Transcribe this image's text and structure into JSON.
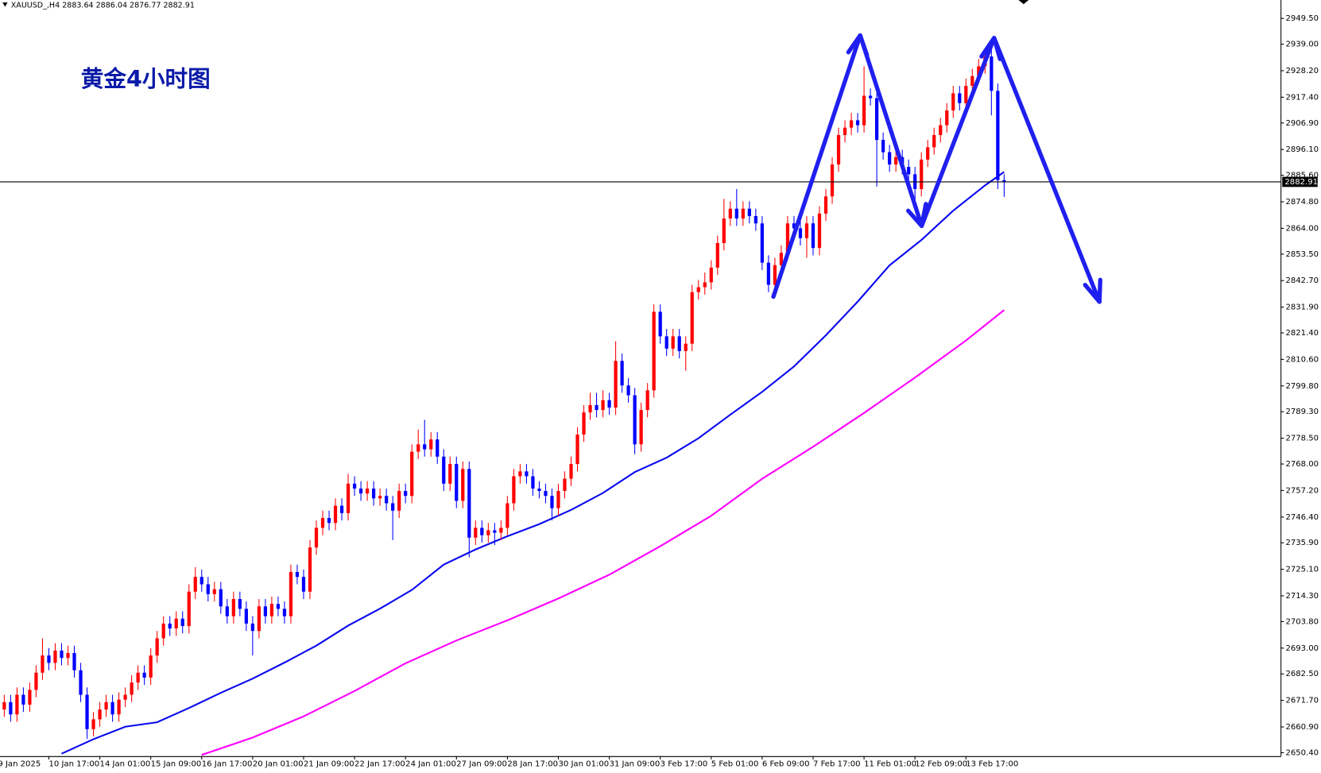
{
  "chart_data": {
    "type": "candlestick",
    "symbol": "XAUUSD_,H4",
    "annotation": "黄金4小时图",
    "up_color": "#ff0000",
    "down_color": "#0000ff",
    "price_line": true,
    "open": [
      2665,
      2668,
      2671,
      2666,
      2674,
      2670,
      2676,
      2683,
      2690,
      2687,
      2692,
      2689,
      2691,
      2684,
      2674,
      2660,
      2664,
      2668,
      2671,
      2666,
      2672,
      2674,
      2679,
      2683,
      2681,
      2690,
      2697,
      2703,
      2701,
      2705,
      2702,
      2716,
      2722,
      2719,
      2715,
      2717,
      2710,
      2706,
      2713,
      2709,
      2703,
      2700,
      2710,
      2706,
      2711,
      2709,
      2706,
      2724,
      2722,
      2716,
      2734,
      2742,
      2746,
      2744,
      2751,
      2748,
      2760,
      2758,
      2756,
      2758,
      2754,
      2755,
      2752,
      2749,
      2757,
      2755,
      2773,
      2776,
      2774,
      2778,
      2771,
      2760,
      2768,
      2753,
      2766,
      2738,
      2742,
      2739,
      2741,
      2740,
      2742,
      2752,
      2763,
      2765,
      2763,
      2758,
      2757,
      2755,
      2750,
      2757,
      2762,
      2768,
      2780,
      2789,
      2792,
      2790,
      2794,
      2791,
      2810,
      2800,
      2796,
      2776,
      2790,
      2798,
      2830,
      2820,
      2815,
      2820,
      2814,
      2817,
      2838,
      2840,
      2842,
      2848,
      2858,
      2868,
      2872,
      2868,
      2872,
      2869,
      2866,
      2850,
      2841,
      2849,
      2854,
      2866,
      2864,
      2860,
      2866,
      2856,
      2870,
      2877,
      2890,
      2902,
      2905,
      2908,
      2906,
      2918,
      2917,
      2900,
      2895,
      2890,
      2893,
      2889,
      2886,
      2880,
      2892,
      2897,
      2902,
      2906,
      2912,
      2919,
      2915,
      2922,
      2926,
      2930,
      2934,
      2920,
      2883.64
    ],
    "high": [
      2671,
      2674,
      2674,
      2677,
      2677,
      2679,
      2686,
      2697,
      2693,
      2695,
      2695,
      2694,
      2694,
      2687,
      2677,
      2667,
      2671,
      2674,
      2674,
      2675,
      2677,
      2682,
      2686,
      2686,
      2693,
      2700,
      2706,
      2706,
      2708,
      2708,
      2719,
      2726,
      2725,
      2722,
      2720,
      2720,
      2713,
      2716,
      2716,
      2712,
      2706,
      2713,
      2713,
      2714,
      2714,
      2712,
      2727,
      2727,
      2725,
      2737,
      2745,
      2749,
      2749,
      2754,
      2754,
      2764,
      2763,
      2761,
      2761,
      2761,
      2758,
      2758,
      2755,
      2760,
      2760,
      2776,
      2782,
      2786,
      2781,
      2781,
      2774,
      2771,
      2771,
      2769,
      2769,
      2745,
      2745,
      2744,
      2744,
      2745,
      2755,
      2766,
      2768,
      2768,
      2766,
      2761,
      2760,
      2758,
      2760,
      2765,
      2771,
      2783,
      2792,
      2797,
      2797,
      2798,
      2797,
      2818,
      2813,
      2803,
      2799,
      2793,
      2801,
      2833,
      2833,
      2823,
      2823,
      2823,
      2820,
      2841,
      2843,
      2846,
      2851,
      2861,
      2876,
      2875,
      2880,
      2875,
      2875,
      2872,
      2869,
      2853,
      2852,
      2857,
      2869,
      2869,
      2867,
      2869,
      2869,
      2873,
      2880,
      2893,
      2905,
      2908,
      2911,
      2911,
      2930,
      2921,
      2920,
      2903,
      2898,
      2896,
      2896,
      2892,
      2889,
      2895,
      2900,
      2905,
      2909,
      2915,
      2922,
      2922,
      2925,
      2929,
      2933,
      2937,
      2937,
      2923,
      2886.04
    ],
    "low": [
      2662,
      2665,
      2663,
      2663,
      2667,
      2667,
      2673,
      2680,
      2684,
      2684,
      2686,
      2686,
      2681,
      2671,
      2656,
      2657,
      2661,
      2665,
      2663,
      2663,
      2669,
      2671,
      2676,
      2678,
      2678,
      2687,
      2694,
      2698,
      2698,
      2699,
      2699,
      2713,
      2716,
      2712,
      2712,
      2707,
      2703,
      2703,
      2706,
      2700,
      2690,
      2697,
      2703,
      2703,
      2706,
      2703,
      2703,
      2719,
      2713,
      2713,
      2731,
      2739,
      2741,
      2741,
      2745,
      2745,
      2755,
      2753,
      2753,
      2751,
      2751,
      2749,
      2737,
      2746,
      2752,
      2752,
      2770,
      2771,
      2771,
      2768,
      2757,
      2757,
      2750,
      2750,
      2730,
      2735,
      2736,
      2736,
      2735,
      2737,
      2739,
      2749,
      2760,
      2760,
      2755,
      2754,
      2752,
      2745,
      2747,
      2754,
      2759,
      2765,
      2777,
      2786,
      2787,
      2787,
      2788,
      2788,
      2797,
      2793,
      2772,
      2773,
      2787,
      2795,
      2817,
      2812,
      2812,
      2811,
      2806,
      2814,
      2835,
      2837,
      2839,
      2845,
      2855,
      2865,
      2865,
      2865,
      2866,
      2863,
      2847,
      2838,
      2838,
      2846,
      2851,
      2861,
      2857,
      2852,
      2853,
      2853,
      2867,
      2874,
      2887,
      2899,
      2902,
      2903,
      2903,
      2914,
      2881,
      2892,
      2887,
      2887,
      2886,
      2883,
      2872,
      2877,
      2889,
      2894,
      2899,
      2903,
      2909,
      2912,
      2912,
      2919,
      2923,
      2927,
      2910,
      2880,
      2876.77
    ],
    "close": [
      2668,
      2671,
      2666,
      2674,
      2670,
      2676,
      2683,
      2690,
      2687,
      2692,
      2689,
      2691,
      2684,
      2674,
      2660,
      2664,
      2668,
      2671,
      2666,
      2672,
      2674,
      2679,
      2683,
      2681,
      2690,
      2697,
      2703,
      2701,
      2705,
      2702,
      2716,
      2722,
      2719,
      2715,
      2717,
      2710,
      2706,
      2713,
      2709,
      2703,
      2700,
      2710,
      2706,
      2711,
      2709,
      2706,
      2724,
      2722,
      2716,
      2734,
      2742,
      2746,
      2744,
      2751,
      2748,
      2760,
      2758,
      2756,
      2758,
      2754,
      2755,
      2752,
      2749,
      2757,
      2755,
      2773,
      2776,
      2774,
      2778,
      2771,
      2760,
      2768,
      2753,
      2766,
      2738,
      2742,
      2739,
      2741,
      2740,
      2742,
      2752,
      2763,
      2765,
      2763,
      2758,
      2757,
      2755,
      2750,
      2757,
      2762,
      2768,
      2780,
      2789,
      2792,
      2790,
      2794,
      2791,
      2810,
      2800,
      2796,
      2776,
      2790,
      2798,
      2830,
      2820,
      2815,
      2820,
      2814,
      2817,
      2838,
      2840,
      2842,
      2848,
      2858,
      2868,
      2872,
      2868,
      2872,
      2869,
      2866,
      2850,
      2841,
      2849,
      2854,
      2866,
      2864,
      2860,
      2866,
      2856,
      2870,
      2877,
      2890,
      2902,
      2905,
      2908,
      2906,
      2918,
      2917,
      2900,
      2895,
      2890,
      2893,
      2889,
      2886,
      2880,
      2892,
      2897,
      2902,
      2906,
      2912,
      2919,
      2915,
      2922,
      2926,
      2930,
      2934,
      2920,
      2883.64,
      2882.91
    ],
    "lines": [
      {
        "color": "#0a0af0",
        "x": [
          10,
          15,
          20,
          25,
          30,
          35,
          40,
          45,
          50,
          55,
          60,
          65,
          70,
          75,
          80,
          85,
          90,
          95,
          100,
          105,
          110,
          115,
          120,
          125,
          130,
          135,
          140,
          145,
          150,
          155,
          158
        ],
        "values": [
          2650.0,
          2655.9,
          2661.0,
          2662.8,
          2668.6,
          2674.8,
          2680.6,
          2687.1,
          2694.0,
          2702.2,
          2709.1,
          2716.7,
          2727.0,
          2733.2,
          2738.6,
          2743.5,
          2749.3,
          2756.2,
          2764.7,
          2770.6,
          2778.5,
          2788.1,
          2797.4,
          2807.7,
          2820.4,
          2834.1,
          2848.9,
          2859.2,
          2871.2,
          2881.5,
          2887.0
        ]
      },
      {
        "color": "#ff00ff",
        "x": [
          32,
          40,
          48,
          56,
          64,
          72,
          80,
          88,
          96,
          104,
          112,
          120,
          128,
          136,
          144,
          152,
          158
        ],
        "values": [
          2649.5,
          2656.6,
          2665.2,
          2675.5,
          2686.8,
          2696.1,
          2704.3,
          2713.2,
          2722.9,
          2734.5,
          2746.9,
          2762.0,
          2775.0,
          2788.8,
          2803.2,
          2818.3,
          2830.7
        ]
      }
    ],
    "xlim": [
      0.33,
      201.4
    ],
    "xticks": [
      {
        "value": 0,
        "label": "9 Jan 2025"
      },
      {
        "value": 8,
        "label": "10 Jan 17:00"
      },
      {
        "value": 16,
        "label": "14 Jan 01:00"
      },
      {
        "value": 24,
        "label": "15 Jan 09:00"
      },
      {
        "value": 32,
        "label": "16 Jan 17:00"
      },
      {
        "value": 40,
        "label": "20 Jan 01:00"
      },
      {
        "value": 48,
        "label": "21 Jan 09:00"
      },
      {
        "value": 56,
        "label": "22 Jan 17:00"
      },
      {
        "value": 64,
        "label": "24 Jan 01:00"
      },
      {
        "value": 72,
        "label": "27 Jan 09:00"
      },
      {
        "value": 80,
        "label": "28 Jan 17:00"
      },
      {
        "value": 88,
        "label": "30 Jan 01:00"
      },
      {
        "value": 96,
        "label": "31 Jan 09:00"
      },
      {
        "value": 104,
        "label": "3 Feb 17:00"
      },
      {
        "value": 112,
        "label": "5 Feb 01:00"
      },
      {
        "value": 120,
        "label": "6 Feb 09:00"
      },
      {
        "value": 128,
        "label": "7 Feb 17:00"
      },
      {
        "value": 136,
        "label": "11 Feb 01:00"
      },
      {
        "value": 144,
        "label": "12 Feb 09:00"
      },
      {
        "value": 152,
        "label": "13 Feb 17:00"
      }
    ],
    "ylim": [
      2649,
      2957
    ],
    "yticks": [
      {
        "value": 2949.5,
        "label": "2949.50"
      },
      {
        "value": 2939,
        "label": "2939.00"
      },
      {
        "value": 2928.2,
        "label": "2928.20"
      },
      {
        "value": 2917.4,
        "label": "2917.40"
      },
      {
        "value": 2906.9,
        "label": "2906.90"
      },
      {
        "value": 2896.1,
        "label": "2896.10"
      },
      {
        "value": 2885.6,
        "label": "2885.60"
      },
      {
        "value": 2874.8,
        "label": "2874.80"
      },
      {
        "value": 2864,
        "label": "2864.00"
      },
      {
        "value": 2853.5,
        "label": "2853.50"
      },
      {
        "value": 2842.7,
        "label": "2842.70"
      },
      {
        "value": 2831.9,
        "label": "2831.90"
      },
      {
        "value": 2821.4,
        "label": "2821.40"
      },
      {
        "value": 2810.6,
        "label": "2810.60"
      },
      {
        "value": 2799.8,
        "label": "2799.80"
      },
      {
        "value": 2789.3,
        "label": "2789.30"
      },
      {
        "value": 2778.5,
        "label": "2778.50"
      },
      {
        "value": 2768,
        "label": "2768.00"
      },
      {
        "value": 2757.2,
        "label": "2757.20"
      },
      {
        "value": 2746.4,
        "label": "2746.40"
      },
      {
        "value": 2735.9,
        "label": "2735.90"
      },
      {
        "value": 2725.1,
        "label": "2725.10"
      },
      {
        "value": 2714.3,
        "label": "2714.30"
      },
      {
        "value": 2703.8,
        "label": "2703.80"
      },
      {
        "value": 2693,
        "label": "2693.00"
      },
      {
        "value": 2682.5,
        "label": "2682.50"
      },
      {
        "value": 2671.7,
        "label": "2671.70"
      },
      {
        "value": 2660.9,
        "label": "2660.90"
      },
      {
        "value": 2650.4,
        "label": "2650.40"
      }
    ]
  }
}
